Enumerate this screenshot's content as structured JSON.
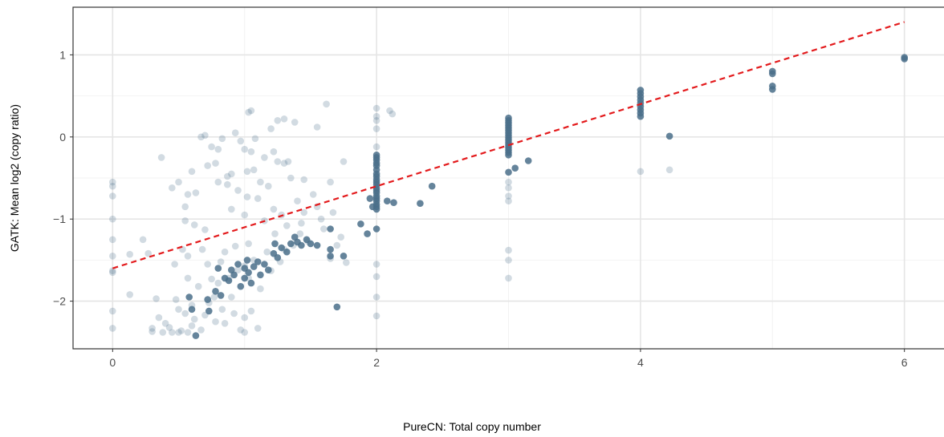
{
  "chart_data": {
    "type": "scatter",
    "title": "",
    "xlabel": "PureCN: Total copy number",
    "ylabel": "GATK: Mean log2 (copy ratio)",
    "xlim": [
      -0.3,
      6.3
    ],
    "ylim": [
      -2.58,
      1.58
    ],
    "x_ticks": [
      0,
      2,
      4,
      6
    ],
    "x_tick_labels": [
      "0",
      "2",
      "4",
      "6"
    ],
    "y_ticks": [
      -2,
      -1,
      0,
      1
    ],
    "y_tick_labels": [
      "−2",
      "−1",
      "0",
      "1"
    ],
    "grid": true,
    "colors": {
      "point": "#4a6e8a",
      "fit_line": "#e31a1c",
      "grid_major": "#e5e5e5",
      "grid_minor": "#f2f2f2",
      "border": "#333333"
    },
    "series": [
      {
        "opacity": 0.25,
        "points": [
          [
            0,
            -0.55
          ],
          [
            0,
            -0.6
          ],
          [
            0,
            -0.72
          ],
          [
            0,
            -1.0
          ],
          [
            0,
            -1.25
          ],
          [
            0,
            -1.45
          ],
          [
            0,
            -1.63
          ],
          [
            0,
            -1.65
          ],
          [
            0,
            -2.12
          ],
          [
            0,
            -2.33
          ],
          [
            0.13,
            -1.43
          ],
          [
            0.13,
            -1.92
          ],
          [
            0.23,
            -1.25
          ],
          [
            0.27,
            -1.42
          ],
          [
            0.3,
            -2.33
          ],
          [
            0.3,
            -2.37
          ],
          [
            0.33,
            -1.97
          ],
          [
            0.35,
            -2.2
          ],
          [
            0.37,
            -0.25
          ],
          [
            0.38,
            -2.38
          ],
          [
            0.4,
            -2.27
          ],
          [
            0.43,
            -2.32
          ],
          [
            0.45,
            -2.38
          ],
          [
            0.47,
            -1.55
          ],
          [
            0.48,
            -1.98
          ],
          [
            0.5,
            -2.1
          ],
          [
            0.5,
            -2.38
          ],
          [
            0.52,
            -2.36
          ],
          [
            0.53,
            -1.37
          ],
          [
            0.55,
            -1.02
          ],
          [
            0.55,
            -0.85
          ],
          [
            0.55,
            -2.15
          ],
          [
            0.57,
            -1.45
          ],
          [
            0.57,
            -1.72
          ],
          [
            0.57,
            -2.38
          ],
          [
            0.6,
            -2.05
          ],
          [
            0.6,
            -2.3
          ],
          [
            0.62,
            -1.07
          ],
          [
            0.62,
            -2.22
          ],
          [
            0.63,
            -0.68
          ],
          [
            0.65,
            -1.82
          ],
          [
            0.67,
            -2.35
          ],
          [
            0.68,
            -1.37
          ],
          [
            0.7,
            -1.13
          ],
          [
            0.7,
            -2.17
          ],
          [
            0.72,
            -1.55
          ],
          [
            0.73,
            -2.02
          ],
          [
            0.75,
            -1.73
          ],
          [
            0.77,
            -1.95
          ],
          [
            0.78,
            -2.25
          ],
          [
            0.8,
            -0.55
          ],
          [
            0.8,
            -1.78
          ],
          [
            0.82,
            -1.52
          ],
          [
            0.83,
            -2.1
          ],
          [
            0.85,
            -1.4
          ],
          [
            0.85,
            -2.27
          ],
          [
            0.87,
            -0.48
          ],
          [
            0.88,
            -1.72
          ],
          [
            0.9,
            -1.95
          ],
          [
            0.9,
            -0.88
          ],
          [
            0.92,
            -2.15
          ],
          [
            0.93,
            -1.33
          ],
          [
            0.95,
            -0.65
          ],
          [
            0.95,
            -1.62
          ],
          [
            0.97,
            -2.35
          ],
          [
            1.0,
            -0.95
          ],
          [
            1.0,
            -1.57
          ],
          [
            1.0,
            -2.2
          ],
          [
            1.0,
            -2.38
          ],
          [
            1.02,
            -0.73
          ],
          [
            1.03,
            -1.3
          ],
          [
            1.03,
            -1.72
          ],
          [
            1.05,
            -0.18
          ],
          [
            1.05,
            -2.12
          ],
          [
            1.07,
            -0.4
          ],
          [
            1.07,
            -1.5
          ],
          [
            1.08,
            -0.02
          ],
          [
            1.1,
            -2.33
          ],
          [
            1.1,
            -0.75
          ],
          [
            1.12,
            -1.85
          ],
          [
            1.15,
            -1.02
          ],
          [
            1.17,
            -1.4
          ],
          [
            1.18,
            -0.6
          ],
          [
            1.2,
            -1.63
          ],
          [
            1.22,
            -0.88
          ],
          [
            1.23,
            -1.18
          ],
          [
            1.25,
            -0.3
          ],
          [
            1.27,
            -1.52
          ],
          [
            1.28,
            -0.95
          ],
          [
            1.3,
            -1.37
          ],
          [
            1.32,
            -1.08
          ],
          [
            1.35,
            -0.5
          ],
          [
            1.37,
            -1.32
          ],
          [
            1.4,
            -0.78
          ],
          [
            1.42,
            -1.18
          ],
          [
            1.43,
            -1.05
          ],
          [
            1.45,
            -0.92
          ],
          [
            1.48,
            -1.27
          ],
          [
            1.52,
            -0.7
          ],
          [
            1.55,
            -0.85
          ],
          [
            1.58,
            -1.0
          ],
          [
            1.6,
            -1.12
          ],
          [
            1.62,
            0.4
          ],
          [
            1.65,
            -1.48
          ],
          [
            1.67,
            -0.92
          ],
          [
            1.7,
            -1.32
          ],
          [
            1.73,
            -1.22
          ],
          [
            1.75,
            -0.3
          ],
          [
            1.77,
            -1.53
          ],
          [
            0.45,
            -0.62
          ],
          [
            0.5,
            -0.55
          ],
          [
            0.57,
            -0.7
          ],
          [
            0.6,
            -0.42
          ],
          [
            0.67,
            0.0
          ],
          [
            0.7,
            0.02
          ],
          [
            0.72,
            -0.35
          ],
          [
            0.75,
            -0.12
          ],
          [
            0.78,
            -0.32
          ],
          [
            0.8,
            -0.15
          ],
          [
            0.83,
            -0.02
          ],
          [
            0.87,
            -0.58
          ],
          [
            0.9,
            -0.45
          ],
          [
            0.93,
            0.05
          ],
          [
            0.97,
            -0.05
          ],
          [
            1.0,
            -0.15
          ],
          [
            1.02,
            -0.42
          ],
          [
            1.03,
            0.3
          ],
          [
            1.05,
            0.32
          ],
          [
            1.12,
            -0.55
          ],
          [
            1.15,
            -0.25
          ],
          [
            1.2,
            0.1
          ],
          [
            1.25,
            0.2
          ],
          [
            1.3,
            0.22
          ],
          [
            1.33,
            -0.3
          ],
          [
            1.38,
            0.18
          ],
          [
            1.45,
            -0.52
          ],
          [
            1.55,
            0.12
          ],
          [
            1.65,
            -0.55
          ],
          [
            1.22,
            -0.18
          ],
          [
            1.3,
            -0.32
          ],
          [
            2,
            0.35
          ],
          [
            2,
            0.25
          ],
          [
            2,
            0.2
          ],
          [
            2,
            0.1
          ],
          [
            2,
            -0.12
          ],
          [
            2,
            -1.55
          ],
          [
            2,
            -1.7
          ],
          [
            2,
            -1.95
          ],
          [
            2,
            -2.18
          ],
          [
            2.1,
            0.32
          ],
          [
            2.12,
            0.28
          ],
          [
            3,
            -0.55
          ],
          [
            3,
            -0.62
          ],
          [
            3,
            -0.72
          ],
          [
            3,
            -0.78
          ],
          [
            3,
            -1.38
          ],
          [
            3,
            -1.5
          ],
          [
            3,
            -1.72
          ],
          [
            4,
            -0.42
          ],
          [
            4.22,
            -0.4
          ]
        ]
      },
      {
        "opacity": 0.85,
        "points": [
          [
            0.58,
            -1.95
          ],
          [
            0.6,
            -2.1
          ],
          [
            0.63,
            -2.42
          ],
          [
            0.72,
            -1.98
          ],
          [
            0.73,
            -2.12
          ],
          [
            0.78,
            -1.88
          ],
          [
            0.8,
            -1.6
          ],
          [
            0.82,
            -1.93
          ],
          [
            0.85,
            -1.72
          ],
          [
            0.88,
            -1.75
          ],
          [
            0.9,
            -1.62
          ],
          [
            0.92,
            -1.68
          ],
          [
            0.95,
            -1.55
          ],
          [
            0.97,
            -1.82
          ],
          [
            1.0,
            -1.6
          ],
          [
            1.0,
            -1.72
          ],
          [
            1.02,
            -1.5
          ],
          [
            1.03,
            -1.65
          ],
          [
            1.05,
            -1.78
          ],
          [
            1.07,
            -1.58
          ],
          [
            1.1,
            -1.52
          ],
          [
            1.12,
            -1.68
          ],
          [
            1.15,
            -1.55
          ],
          [
            1.18,
            -1.62
          ],
          [
            1.22,
            -1.42
          ],
          [
            1.23,
            -1.3
          ],
          [
            1.25,
            -1.47
          ],
          [
            1.28,
            -1.35
          ],
          [
            1.32,
            -1.4
          ],
          [
            1.35,
            -1.3
          ],
          [
            1.38,
            -1.22
          ],
          [
            1.4,
            -1.28
          ],
          [
            1.43,
            -1.32
          ],
          [
            1.47,
            -1.25
          ],
          [
            1.5,
            -1.3
          ],
          [
            1.55,
            -1.32
          ],
          [
            1.65,
            -1.37
          ],
          [
            1.65,
            -1.45
          ],
          [
            1.7,
            -2.07
          ],
          [
            1.75,
            -1.45
          ],
          [
            1.65,
            -1.12
          ],
          [
            1.88,
            -1.06
          ],
          [
            1.93,
            -1.18
          ],
          [
            1.95,
            -0.75
          ],
          [
            1.97,
            -0.85
          ],
          [
            2.08,
            -0.78
          ],
          [
            2.13,
            -0.8
          ],
          [
            2.33,
            -0.81
          ],
          [
            2.42,
            -0.6
          ],
          [
            2,
            -0.22
          ],
          [
            2,
            -0.25
          ],
          [
            2,
            -0.28
          ],
          [
            2,
            -0.32
          ],
          [
            2,
            -0.35
          ],
          [
            2,
            -0.4
          ],
          [
            2,
            -0.45
          ],
          [
            2,
            -0.48
          ],
          [
            2,
            -0.52
          ],
          [
            2,
            -0.55
          ],
          [
            2,
            -0.58
          ],
          [
            2,
            -0.62
          ],
          [
            2,
            -0.65
          ],
          [
            2,
            -0.68
          ],
          [
            2,
            -0.72
          ],
          [
            2,
            -0.75
          ],
          [
            2,
            -0.78
          ],
          [
            2,
            -0.82
          ],
          [
            2,
            -0.85
          ],
          [
            2,
            -0.88
          ],
          [
            2,
            -1.12
          ],
          [
            3,
            0.23
          ],
          [
            3,
            0.2
          ],
          [
            3,
            0.17
          ],
          [
            3,
            0.14
          ],
          [
            3,
            0.11
          ],
          [
            3,
            0.08
          ],
          [
            3,
            0.05
          ],
          [
            3,
            0.02
          ],
          [
            3,
            -0.01
          ],
          [
            3,
            -0.04
          ],
          [
            3,
            -0.07
          ],
          [
            3,
            -0.1
          ],
          [
            3,
            -0.13
          ],
          [
            3,
            -0.16
          ],
          [
            3,
            -0.19
          ],
          [
            3,
            -0.22
          ],
          [
            3,
            -0.43
          ],
          [
            3.05,
            -0.38
          ],
          [
            3.15,
            -0.29
          ],
          [
            4,
            0.57
          ],
          [
            4,
            0.53
          ],
          [
            4,
            0.49
          ],
          [
            4,
            0.45
          ],
          [
            4,
            0.41
          ],
          [
            4,
            0.37
          ],
          [
            4,
            0.33
          ],
          [
            4,
            0.29
          ],
          [
            4,
            0.25
          ],
          [
            4.22,
            0.01
          ],
          [
            5,
            0.8
          ],
          [
            5,
            0.77
          ],
          [
            5,
            0.62
          ],
          [
            5,
            0.58
          ],
          [
            6,
            0.97
          ],
          [
            6,
            0.95
          ]
        ]
      }
    ],
    "fit_line": {
      "x": [
        0,
        6
      ],
      "y": [
        -1.6,
        1.4
      ],
      "style": "dashed"
    }
  }
}
